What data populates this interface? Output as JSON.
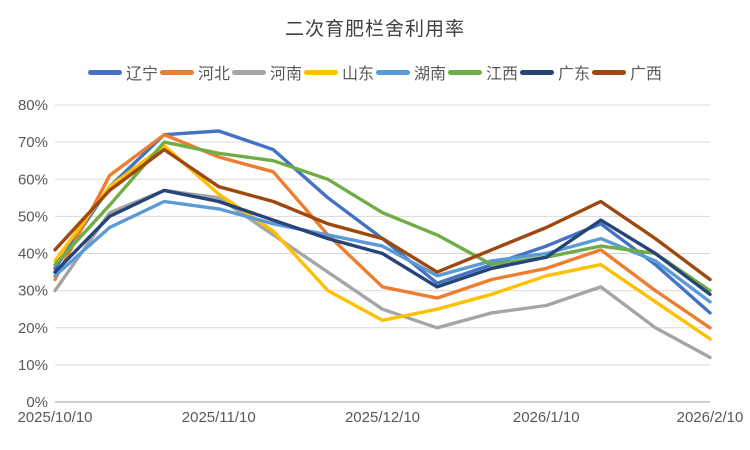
{
  "chart_data": {
    "type": "line",
    "title": "二次育肥栏舍利用率",
    "xlabel": "",
    "ylabel": "",
    "ylim": [
      0,
      80
    ],
    "ytick_step": 10,
    "ytick_format": "percent",
    "grid": true,
    "legend_position": "top",
    "gridline_color": "#d9d9d9",
    "axis_line_color": "#bfbfbf",
    "axis_text_color": "#595959",
    "categories": [
      "2025/10/10",
      "2025/10/20",
      "2025/10/31",
      "2025/11/10",
      "2025/11/20",
      "2025/11/30",
      "2025/12/10",
      "2025/12/20",
      "2025/12/31",
      "2026/1/10",
      "2026/1/20",
      "2026/1/31",
      "2026/2/10"
    ],
    "x_axis_tick_labels": [
      "2025/10/10",
      "2025/11/10",
      "2025/12/10",
      "2026/1/10",
      "2026/2/10"
    ],
    "x_axis_tick_indices": [
      0,
      3,
      6,
      9,
      12
    ],
    "series": [
      {
        "name": "辽宁",
        "color": "#4472C4",
        "values": [
          36,
          58,
          72,
          73,
          68,
          55,
          44,
          32,
          37,
          42,
          48,
          37,
          24
        ]
      },
      {
        "name": "河北",
        "color": "#ED7D31",
        "values": [
          33,
          61,
          72,
          66,
          62,
          45,
          31,
          28,
          33,
          36,
          41,
          30,
          20
        ]
      },
      {
        "name": "河南",
        "color": "#A5A5A5",
        "values": [
          30,
          51,
          57,
          55,
          45,
          35,
          25,
          20,
          24,
          26,
          31,
          20,
          12
        ]
      },
      {
        "name": "山东",
        "color": "#FFC000",
        "values": [
          38,
          58,
          69,
          56,
          46,
          30,
          22,
          25,
          29,
          34,
          37,
          27,
          17
        ]
      },
      {
        "name": "湖南",
        "color": "#5B9BD5",
        "values": [
          34,
          47,
          54,
          52,
          48,
          45,
          42,
          34,
          38,
          40,
          44,
          38,
          27
        ]
      },
      {
        "name": "江西",
        "color": "#70AD47",
        "values": [
          37,
          53,
          70,
          67,
          65,
          60,
          51,
          45,
          37,
          39,
          42,
          40,
          30
        ]
      },
      {
        "name": "广东",
        "color": "#264478",
        "values": [
          35,
          50,
          57,
          54,
          49,
          44,
          40,
          31,
          36,
          39,
          49,
          40,
          29
        ]
      },
      {
        "name": "广西",
        "color": "#9E480E",
        "values": [
          41,
          57,
          68,
          58,
          54,
          48,
          44,
          35,
          41,
          47,
          54,
          44,
          33
        ]
      }
    ]
  }
}
